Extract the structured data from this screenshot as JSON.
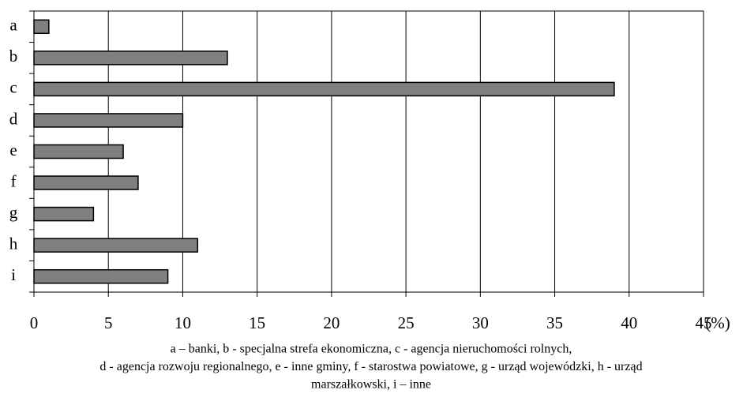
{
  "chart_data": {
    "type": "hbar",
    "categories": [
      "a",
      "b",
      "c",
      "d",
      "e",
      "f",
      "g",
      "h",
      "i"
    ],
    "values": [
      1,
      13,
      39,
      10,
      6,
      7,
      4,
      11,
      9
    ],
    "color": "#808080",
    "xlim": [
      0,
      45
    ],
    "xticks": [
      0,
      5,
      10,
      15,
      20,
      25,
      30,
      35,
      40,
      45
    ],
    "x_label": "(%)",
    "grid": true,
    "caption": [
      "a – banki, b - specjalna strefa ekonomiczna, c - agencja nieruchomości rolnych,",
      "d - agencja rozwoju regionalnego, e - inne gminy, f - starostwa powiatowe, g - urząd wojewódzki, h - urząd",
      "marszałkowski, i – inne"
    ]
  }
}
